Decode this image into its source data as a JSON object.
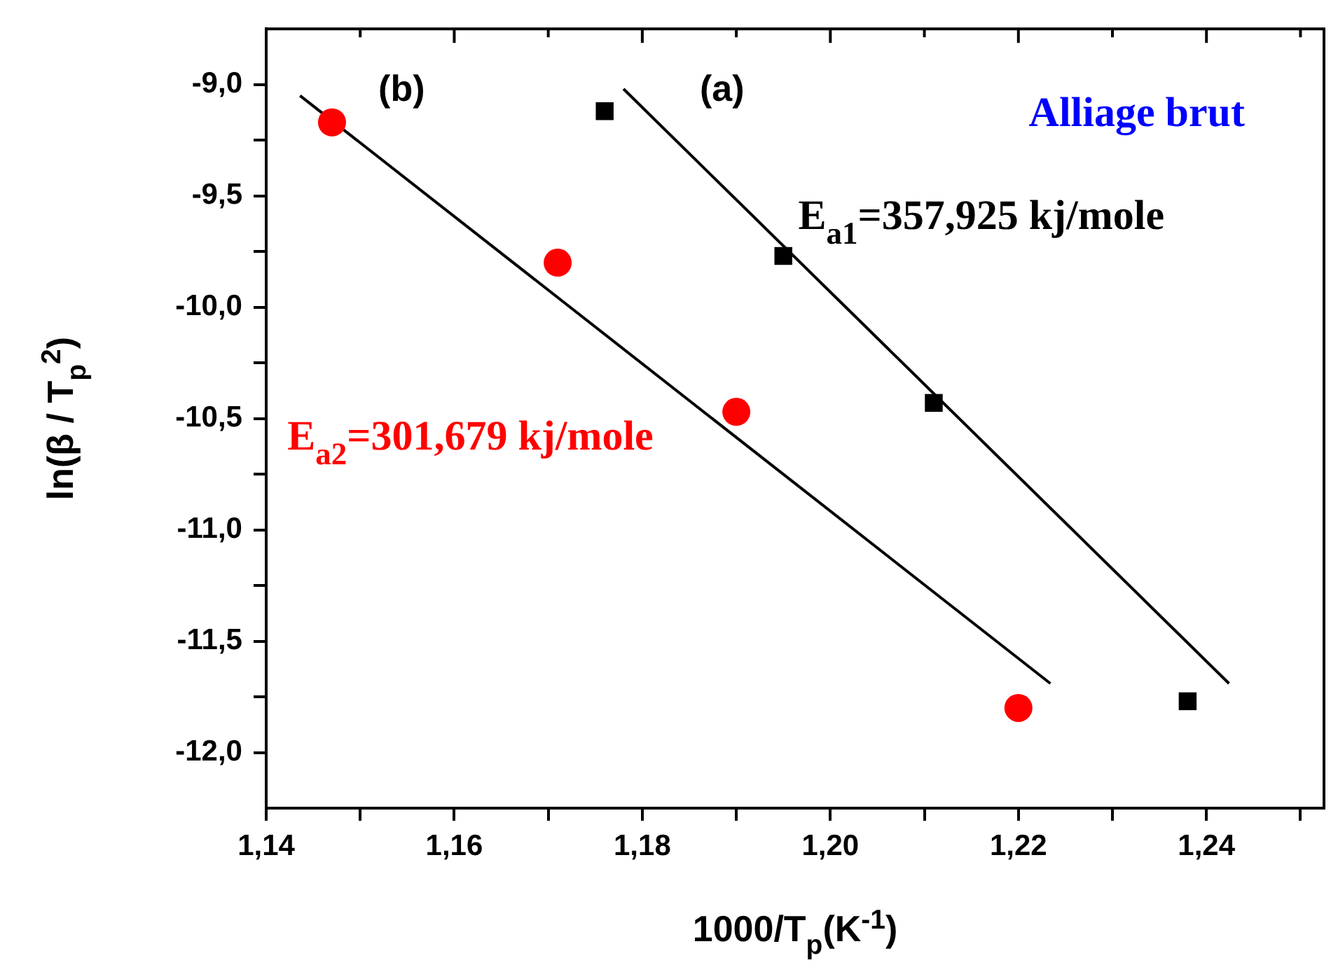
{
  "chart_data": {
    "type": "scatter",
    "xlabel": "1000/T$_{p}$(K$^{-1}$)",
    "ylabel": "ln(β / T$_{p}$$^{2}$)",
    "xlim": [
      1.14,
      1.2525
    ],
    "ylim": [
      -12.25,
      -8.75
    ],
    "xticks": [
      {
        "value": 1.14,
        "label": "1,14"
      },
      {
        "value": 1.15,
        "label": null
      },
      {
        "value": 1.16,
        "label": "1,16"
      },
      {
        "value": 1.17,
        "label": null
      },
      {
        "value": 1.18,
        "label": "1,18"
      },
      {
        "value": 1.19,
        "label": null
      },
      {
        "value": 1.2,
        "label": "1,20"
      },
      {
        "value": 1.21,
        "label": null
      },
      {
        "value": 1.22,
        "label": "1,22"
      },
      {
        "value": 1.23,
        "label": null
      },
      {
        "value": 1.24,
        "label": "1,24"
      },
      {
        "value": 1.25,
        "label": null
      }
    ],
    "yticks": [
      {
        "value": -9.0,
        "label": "-9,0"
      },
      {
        "value": -9.25,
        "label": null
      },
      {
        "value": -9.5,
        "label": "-9,5"
      },
      {
        "value": -9.75,
        "label": null
      },
      {
        "value": -10.0,
        "label": "-10,0"
      },
      {
        "value": -10.25,
        "label": null
      },
      {
        "value": -10.5,
        "label": "-10,5"
      },
      {
        "value": -10.75,
        "label": null
      },
      {
        "value": -11.0,
        "label": "-11,0"
      },
      {
        "value": -11.25,
        "label": null
      },
      {
        "value": -11.5,
        "label": "-11,5"
      },
      {
        "value": -11.75,
        "label": null
      },
      {
        "value": -12.0,
        "label": "-12,0"
      }
    ],
    "series": [
      {
        "color": "#000000",
        "marker": "square",
        "x": [
          1.176,
          1.195,
          1.211,
          1.238
        ],
        "values": [
          -9.12,
          -9.77,
          -10.43,
          -11.77
        ]
      },
      {
        "color": "#ff0000",
        "marker": "circle",
        "x": [
          1.147,
          1.171,
          1.19,
          1.22
        ],
        "values": [
          -9.17,
          -9.8,
          -10.47,
          -11.8
        ]
      },
      {
        "type": "line",
        "color": "#000000",
        "x": [
          1.178,
          1.2424
        ],
        "values": [
          -9.02,
          -11.69
        ]
      },
      {
        "type": "line",
        "color": "#000000",
        "x": [
          1.1436,
          1.2234
        ],
        "values": [
          -9.05,
          -11.69
        ]
      }
    ],
    "annotations": [
      "(b)",
      "(a)",
      "E$_{a1}$=357,925 kj/mole",
      "E$_{a2}$=301,679 kj/mole",
      "Alliage brut"
    ],
    "grid": false,
    "legend": false
  }
}
